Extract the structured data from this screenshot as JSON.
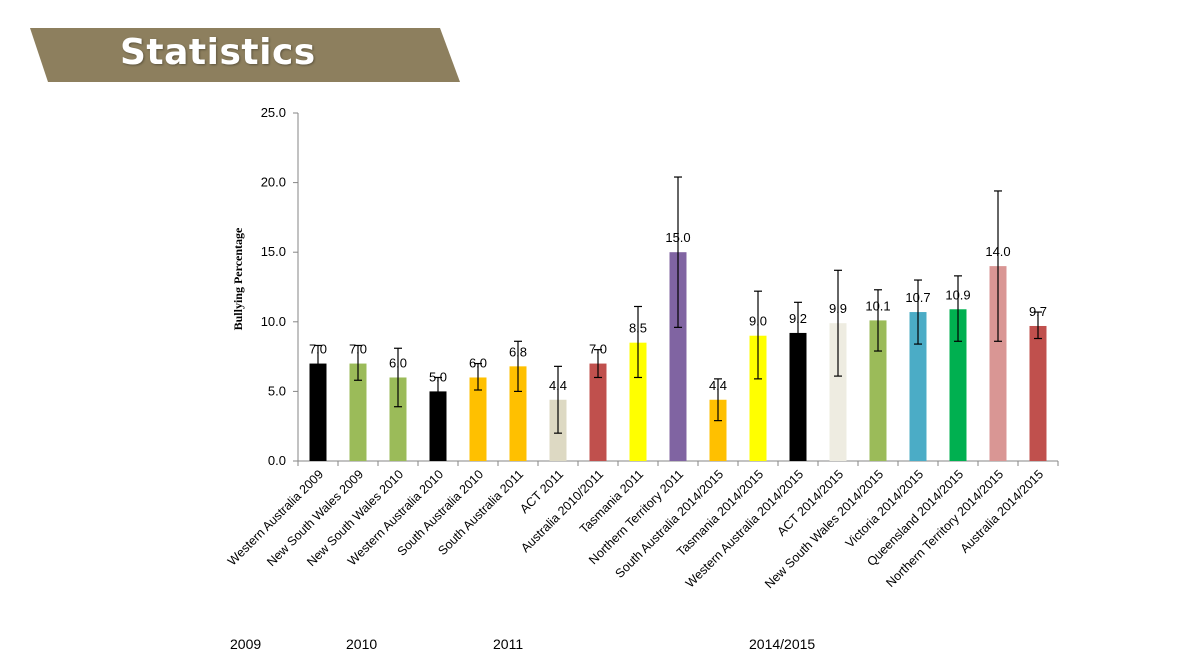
{
  "header": {
    "title": "Statistics",
    "banner_color": "#8d7f5e"
  },
  "groups": [
    "2009",
    "2010",
    "2011",
    "2014/2015"
  ],
  "chart_data": {
    "type": "bar",
    "title": "",
    "xlabel": "",
    "ylabel": "Bullying Percentage",
    "ylim": [
      0,
      25
    ],
    "yticks": [
      "0.0",
      "5.0",
      "10.0",
      "15.0",
      "20.0",
      "25.0"
    ],
    "grid": false,
    "legend": "none",
    "categories": [
      "Western Australia 2009",
      "New South Wales 2009",
      "New South Wales 2010",
      "Western Australia 2010",
      "South Australia 2010",
      "South Australia 2011",
      "ACT 2011",
      "Australia 2010/2011",
      "Tasmania 2011",
      "Northern Territory 2011",
      "South Australia 2014/2015",
      "Tasmania 2014/2015",
      "Western Australia 2014/2015",
      "ACT 2014/2015",
      "New South Wales 2014/2015",
      "Victoria 2014/2015",
      "Queensland 2014/2015",
      "Northern Territory 2014/2015",
      "Australia 2014/2015"
    ],
    "values": [
      7.0,
      7.0,
      6.0,
      5.0,
      6.0,
      6.8,
      4.4,
      7.0,
      8.5,
      15.0,
      4.4,
      9.0,
      9.2,
      9.9,
      10.1,
      10.7,
      10.9,
      14.0,
      9.7
    ],
    "value_labels": [
      "7.0",
      "7.0",
      "6.0",
      "5.0",
      "6.0",
      "6.8",
      "4.4",
      "7.0",
      "8.5",
      "15.0",
      "4.4",
      "9.0",
      "9.2",
      "9.9",
      "10.1",
      "10.7",
      "10.9",
      "14.0",
      "9.7"
    ],
    "error_low": [
      6.0,
      5.8,
      3.9,
      4.0,
      5.1,
      5.0,
      2.0,
      6.0,
      6.0,
      9.6,
      2.9,
      5.9,
      7.3,
      6.1,
      7.9,
      8.4,
      8.6,
      8.6,
      8.8
    ],
    "error_high": [
      8.3,
      8.3,
      8.1,
      6.0,
      7.0,
      8.6,
      6.8,
      8.0,
      11.1,
      20.4,
      5.9,
      12.2,
      11.4,
      13.7,
      12.3,
      13.0,
      13.3,
      19.4,
      10.7
    ],
    "colors": [
      "#000000",
      "#9bbb59",
      "#9bbb59",
      "#000000",
      "#ffc000",
      "#ffc000",
      "#ddd9c3",
      "#c0504d",
      "#ffff00",
      "#8064a2",
      "#ffc000",
      "#ffff00",
      "#000000",
      "#eeece1",
      "#9bbb59",
      "#4bacc6",
      "#00b050",
      "#d99694",
      "#c0504d"
    ]
  }
}
